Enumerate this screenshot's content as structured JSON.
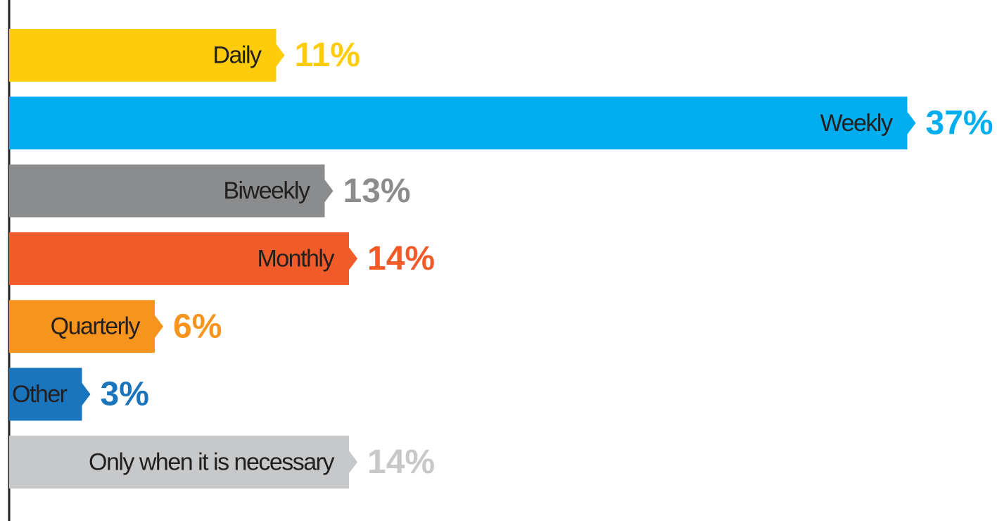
{
  "chart_data": {
    "type": "bar",
    "orientation": "horizontal",
    "categories": [
      "Daily",
      "Weekly",
      "Biweekly",
      "Monthly",
      "Quarterly",
      "Other",
      "Only when it is necessary"
    ],
    "values": [
      11,
      37,
      13,
      14,
      6,
      3,
      14
    ],
    "value_labels": [
      "11%",
      "37%",
      "13%",
      "14%",
      "6%",
      "3%",
      "14%"
    ],
    "colors": [
      "#fecc0a",
      "#00aeef",
      "#8b8c8e",
      "#f15a29",
      "#f7941d",
      "#1b75bc",
      "#c7c8ca"
    ]
  }
}
